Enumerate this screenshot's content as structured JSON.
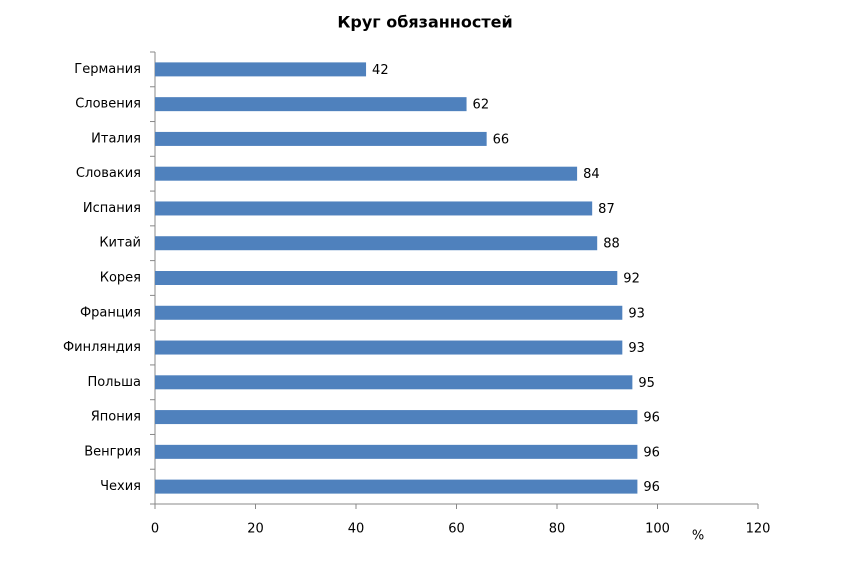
{
  "chart_data": {
    "type": "bar",
    "orientation": "horizontal",
    "title": "Круг обязанностей",
    "xlabel": "%",
    "categories": [
      "Германия",
      "Словения",
      "Италия",
      "Словакия",
      "Испания",
      "Китай",
      "Корея",
      "Франция",
      "Финляндия",
      "Польша",
      "Япония",
      "Венгрия",
      "Чехия"
    ],
    "values": [
      42,
      62,
      66,
      84,
      87,
      88,
      92,
      93,
      93,
      95,
      96,
      96,
      96
    ],
    "color": "#4f81bd",
    "xlim": [
      0,
      120
    ],
    "xticks": [
      0,
      20,
      40,
      60,
      80,
      100,
      120
    ],
    "grid": false
  }
}
